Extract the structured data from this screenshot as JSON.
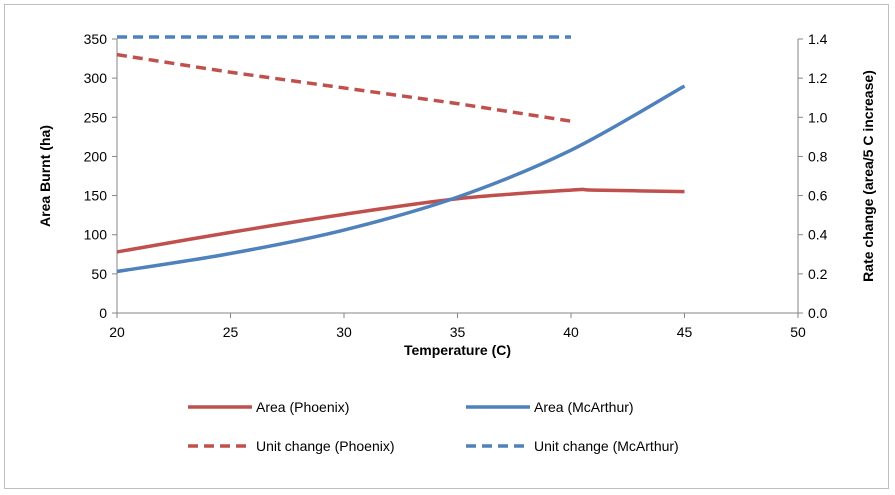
{
  "chart_data": {
    "type": "line",
    "xlabel": "Temperature (C)",
    "ylabel_left": "Area Burnt (ha)",
    "ylabel_right": "Rate change  (area/5 C increase)",
    "xlim": [
      20,
      50
    ],
    "ylim_left": [
      0,
      350
    ],
    "ylim_right": [
      0.0,
      1.4
    ],
    "x_ticks": [
      "20",
      "25",
      "30",
      "35",
      "40",
      "45",
      "50"
    ],
    "y_left_ticks": [
      "0",
      "50",
      "100",
      "150",
      "200",
      "250",
      "300",
      "350"
    ],
    "y_right_ticks": [
      "0.0",
      "0.2",
      "0.4",
      "0.6",
      "0.8",
      "1.0",
      "1.2",
      "1.4"
    ],
    "grid": false,
    "legend_position": "bottom",
    "series": [
      {
        "name": "Area (Phoenix)",
        "axis": "left",
        "style": "solid",
        "color": "#c0504d",
        "x": [
          20,
          25,
          30,
          35,
          40,
          41,
          45
        ],
        "values": [
          78,
          103,
          126,
          146,
          157,
          157,
          155
        ]
      },
      {
        "name": "Area (McArthur)",
        "axis": "left",
        "style": "solid",
        "color": "#4f81bd",
        "x": [
          20,
          25,
          30,
          35,
          40,
          45
        ],
        "values": [
          53,
          76,
          106,
          148,
          208,
          290
        ]
      },
      {
        "name": "Unit change (Phoenix)",
        "axis": "right",
        "style": "dashed",
        "color": "#c0504d",
        "x": [
          20,
          25,
          30,
          35,
          40
        ],
        "values": [
          1.32,
          1.23,
          1.15,
          1.07,
          0.98
        ]
      },
      {
        "name": "Unit change (McArthur)",
        "axis": "right",
        "style": "dashed",
        "color": "#4f81bd",
        "x": [
          20,
          40
        ],
        "values": [
          1.41,
          1.41
        ]
      }
    ]
  }
}
